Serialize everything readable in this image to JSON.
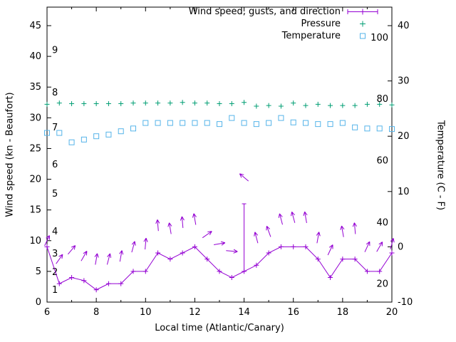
{
  "chart_data": {
    "type": "line",
    "title": "",
    "xlabel": "Local time (Atlantic/Canary)",
    "ylabel_left": "Wind speed (kn - Beaufort)",
    "ylabel_right": "Temperature (C - F)",
    "x_range": [
      6,
      20
    ],
    "y_left_range": [
      0,
      48
    ],
    "y_right_range": [
      -10,
      43.4
    ],
    "x_ticks": [
      6,
      8,
      10,
      12,
      14,
      16,
      18,
      20
    ],
    "x_minor_ticks": [
      7,
      9,
      11,
      13,
      15,
      17,
      19
    ],
    "y_left_ticks": [
      0,
      5,
      10,
      15,
      20,
      25,
      30,
      35,
      40,
      45
    ],
    "y_right_ticks": [
      -10,
      0,
      10,
      20,
      30,
      40
    ],
    "grid": false,
    "legend_position": "top-right",
    "colors": {
      "wind": "#9400d3",
      "pressure": "#009e73",
      "temperature": "#56b4e9",
      "axis": "#000000",
      "background": "#ffffff"
    },
    "legend": [
      {
        "label": "Wind speed, gusts, and direction",
        "color": "#9400d3",
        "style": "line-plus"
      },
      {
        "label": "Pressure",
        "color": "#009e73",
        "style": "plus"
      },
      {
        "label": "Temperature",
        "color": "#56b4e9",
        "style": "square"
      }
    ],
    "beaufort_labels": [
      {
        "text": "1",
        "kn": 2
      },
      {
        "text": "2",
        "kn": 4.9
      },
      {
        "text": "3",
        "kn": 7.9
      },
      {
        "text": "4",
        "kn": 11.5
      },
      {
        "text": "5",
        "kn": 17.6
      },
      {
        "text": "6",
        "kn": 22.4
      },
      {
        "text": "7",
        "kn": 28.4
      },
      {
        "text": "8",
        "kn": 34.1
      },
      {
        "text": "9",
        "kn": 41
      }
    ],
    "fahrenheit_labels": [
      {
        "text": "20",
        "c": -6.7
      },
      {
        "text": "40",
        "c": 4.4
      },
      {
        "text": "60",
        "c": 15.6
      },
      {
        "text": "80",
        "c": 26.7
      },
      {
        "text": "100",
        "c": 37.8
      }
    ],
    "x": [
      6,
      6.5,
      7,
      7.5,
      8,
      8.5,
      9,
      9.5,
      10,
      10.5,
      11,
      11.5,
      12,
      12.5,
      13,
      13.5,
      14,
      14.5,
      15,
      15.5,
      16,
      16.5,
      17,
      17.5,
      18,
      18.5,
      19,
      19.5,
      20
    ],
    "series": [
      {
        "name": "wind_speed_kn",
        "axis": "left",
        "color": "#9400d3",
        "values": [
          9,
          3,
          4,
          3.5,
          2,
          3,
          3,
          5,
          5,
          8,
          7,
          8,
          9,
          7,
          5,
          4,
          5,
          6,
          8,
          9,
          9,
          9,
          7,
          4,
          7,
          7,
          5,
          5,
          8
        ]
      },
      {
        "name": "pressure",
        "axis": "left",
        "color": "#009e73",
        "values": [
          32.2,
          32.4,
          32.3,
          32.3,
          32.3,
          32.3,
          32.3,
          32.4,
          32.4,
          32.4,
          32.4,
          32.5,
          32.4,
          32.4,
          32.3,
          32.3,
          32.5,
          31.9,
          32.0,
          31.9,
          32.4,
          32.0,
          32.2,
          32.0,
          32.0,
          32.0,
          32.2,
          32.2,
          32.1
        ]
      },
      {
        "name": "temperature_c",
        "axis": "right",
        "color": "#56b4e9",
        "values": [
          20.6,
          20.6,
          18.9,
          19.4,
          20.0,
          20.3,
          20.9,
          21.4,
          22.4,
          22.4,
          22.4,
          22.4,
          22.4,
          22.4,
          22.2,
          23.3,
          22.4,
          22.2,
          22.4,
          23.3,
          22.5,
          22.4,
          22.2,
          22.2,
          22.4,
          21.6,
          21.4,
          21.4,
          21.3
        ]
      }
    ],
    "gusts": [
      {
        "x": 14,
        "low": 5,
        "high": 16
      }
    ],
    "wind_arrows": [
      {
        "x": 6,
        "kn": 10,
        "deg": 25
      },
      {
        "x": 6.5,
        "kn": 7,
        "deg": 35
      },
      {
        "x": 7,
        "kn": 8.5,
        "deg": 40
      },
      {
        "x": 7.5,
        "kn": 7.5,
        "deg": 30
      },
      {
        "x": 8,
        "kn": 7,
        "deg": 10
      },
      {
        "x": 8.5,
        "kn": 7,
        "deg": 15
      },
      {
        "x": 9,
        "kn": 7.5,
        "deg": 10
      },
      {
        "x": 9.5,
        "kn": 9,
        "deg": 15
      },
      {
        "x": 10,
        "kn": 9.5,
        "deg": 5
      },
      {
        "x": 10.5,
        "kn": 12.5,
        "deg": -5
      },
      {
        "x": 11,
        "kn": 12,
        "deg": -10
      },
      {
        "x": 11.5,
        "kn": 13,
        "deg": -5
      },
      {
        "x": 12,
        "kn": 13.5,
        "deg": -10
      },
      {
        "x": 12.5,
        "kn": 11,
        "deg": 55
      },
      {
        "x": 13,
        "kn": 9.5,
        "deg": 80
      },
      {
        "x": 13.5,
        "kn": 8.3,
        "deg": 95
      },
      {
        "x": 14,
        "kn": 20.3,
        "deg": -50
      },
      {
        "x": 14.5,
        "kn": 10.5,
        "deg": -15
      },
      {
        "x": 15,
        "kn": 11.5,
        "deg": -20
      },
      {
        "x": 15.5,
        "kn": 13.5,
        "deg": -15
      },
      {
        "x": 16,
        "kn": 13.8,
        "deg": -15
      },
      {
        "x": 16.5,
        "kn": 13.8,
        "deg": -10
      },
      {
        "x": 17,
        "kn": 10.5,
        "deg": 10
      },
      {
        "x": 17.5,
        "kn": 8.5,
        "deg": 25
      },
      {
        "x": 18,
        "kn": 11.5,
        "deg": -10
      },
      {
        "x": 18.5,
        "kn": 12,
        "deg": -5
      },
      {
        "x": 19,
        "kn": 9,
        "deg": 25
      },
      {
        "x": 19.5,
        "kn": 9,
        "deg": 30
      },
      {
        "x": 20,
        "kn": 9.5,
        "deg": 15
      }
    ]
  }
}
